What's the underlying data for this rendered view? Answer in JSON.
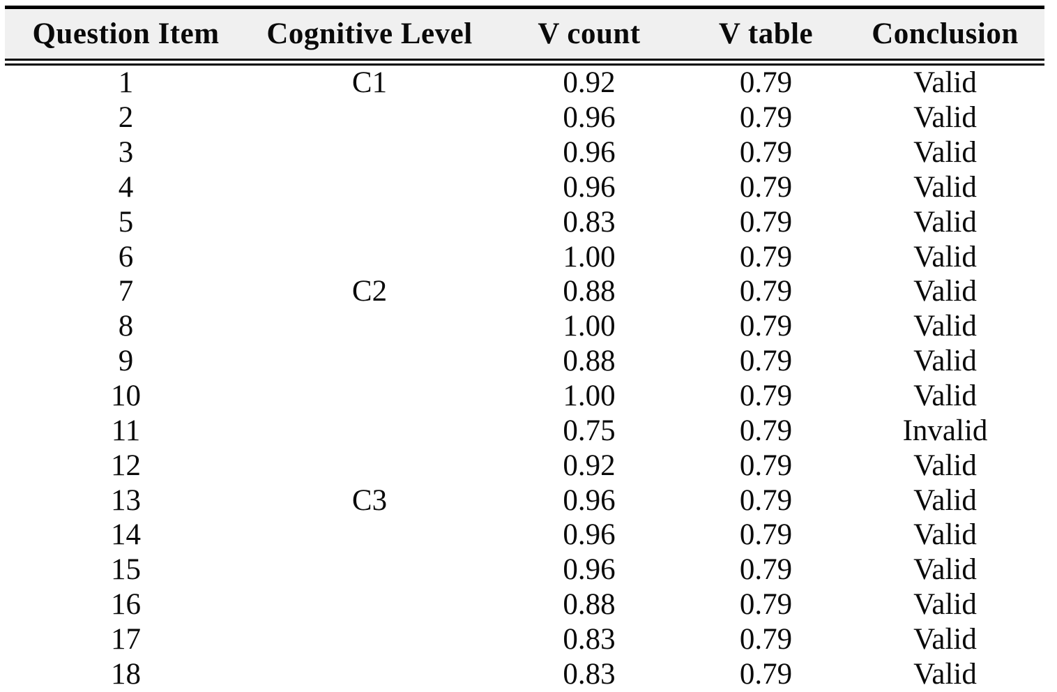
{
  "table": {
    "columns": [
      "Question Item",
      "Cognitive Level",
      "V count",
      "V table",
      "Conclusion"
    ],
    "rows": [
      {
        "item": "1",
        "level": "C1",
        "v_count": "0.92",
        "v_table": "0.79",
        "conclusion": "Valid"
      },
      {
        "item": "2",
        "level": "",
        "v_count": "0.96",
        "v_table": "0.79",
        "conclusion": "Valid"
      },
      {
        "item": "3",
        "level": "",
        "v_count": "0.96",
        "v_table": "0.79",
        "conclusion": "Valid"
      },
      {
        "item": "4",
        "level": "",
        "v_count": "0.96",
        "v_table": "0.79",
        "conclusion": "Valid"
      },
      {
        "item": "5",
        "level": "",
        "v_count": "0.83",
        "v_table": "0.79",
        "conclusion": "Valid"
      },
      {
        "item": "6",
        "level": "",
        "v_count": "1.00",
        "v_table": "0.79",
        "conclusion": "Valid"
      },
      {
        "item": "7",
        "level": "C2",
        "v_count": "0.88",
        "v_table": "0.79",
        "conclusion": "Valid"
      },
      {
        "item": "8",
        "level": "",
        "v_count": "1.00",
        "v_table": "0.79",
        "conclusion": "Valid"
      },
      {
        "item": "9",
        "level": "",
        "v_count": "0.88",
        "v_table": "0.79",
        "conclusion": "Valid"
      },
      {
        "item": "10",
        "level": "",
        "v_count": "1.00",
        "v_table": "0.79",
        "conclusion": "Valid"
      },
      {
        "item": "11",
        "level": "",
        "v_count": "0.75",
        "v_table": "0.79",
        "conclusion": "Invalid"
      },
      {
        "item": "12",
        "level": "",
        "v_count": "0.92",
        "v_table": "0.79",
        "conclusion": "Valid"
      },
      {
        "item": "13",
        "level": "C3",
        "v_count": "0.96",
        "v_table": "0.79",
        "conclusion": "Valid"
      },
      {
        "item": "14",
        "level": "",
        "v_count": "0.96",
        "v_table": "0.79",
        "conclusion": "Valid"
      },
      {
        "item": "15",
        "level": "",
        "v_count": "0.96",
        "v_table": "0.79",
        "conclusion": "Valid"
      },
      {
        "item": "16",
        "level": "",
        "v_count": "0.88",
        "v_table": "0.79",
        "conclusion": "Valid"
      },
      {
        "item": "17",
        "level": "",
        "v_count": "0.83",
        "v_table": "0.79",
        "conclusion": "Valid"
      },
      {
        "item": "18",
        "level": "",
        "v_count": "0.83",
        "v_table": "0.79",
        "conclusion": "Valid"
      }
    ]
  },
  "colors": {
    "header_bg": "#f0f0f0",
    "rule": "#000000",
    "text": "#0a0a0a",
    "page_bg": "#ffffff"
  }
}
